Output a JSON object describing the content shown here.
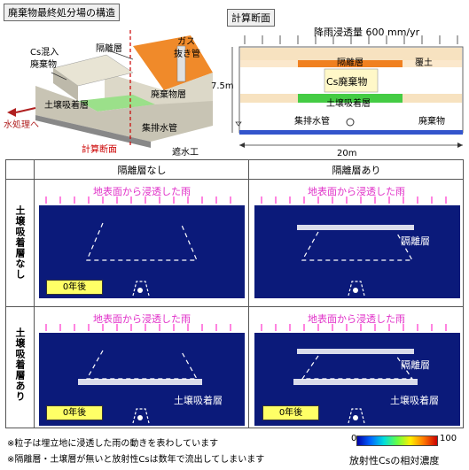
{
  "left_fig": {
    "title": "廃棄物最終処分場の構造",
    "labels": {
      "isolation": "隔離層",
      "gas": "ガス",
      "gas2": "抜き管",
      "cs": "Cs混入",
      "cs2": "廃棄物",
      "waste": "廃棄物層",
      "soil": "土壌吸着層",
      "water": "水処理へ",
      "drain": "集排水管",
      "section": "計算断面",
      "barrier": "遮水工"
    }
  },
  "right_fig": {
    "title": "計算断面",
    "rain": "降雨浸透量 600 mm/yr",
    "isolation": "隔離層",
    "cover": "覆土",
    "cs": "Cs廃棄物",
    "soil": "土壌吸着層",
    "drain": "集排水管",
    "waste": "廃棄物",
    "height": "7.5m",
    "width": "20m"
  },
  "grid": {
    "col_headers": [
      "隔離層なし",
      "隔離層あり"
    ],
    "row_headers": [
      "土壌吸着層なし",
      "土壌吸着層あり"
    ],
    "rain_label": "地表面から浸透した雨",
    "year_label": "0年後",
    "isolation_label": "隔離層",
    "soil_label": "土壌吸着層"
  },
  "footnotes": [
    "※粒子は埋立地に浸透した雨の動きを表わしています",
    "※隔離層・土壌層が無いと放射性Csは数年で流出してしまいます"
  ],
  "colorbar": {
    "min": "0",
    "max": "100",
    "caption": "放射性Csの相対濃度"
  },
  "colors": {
    "panel_bg": "#0b1a7a",
    "rain_arrow": "#ff33cc",
    "year_box": "#ffff66"
  }
}
